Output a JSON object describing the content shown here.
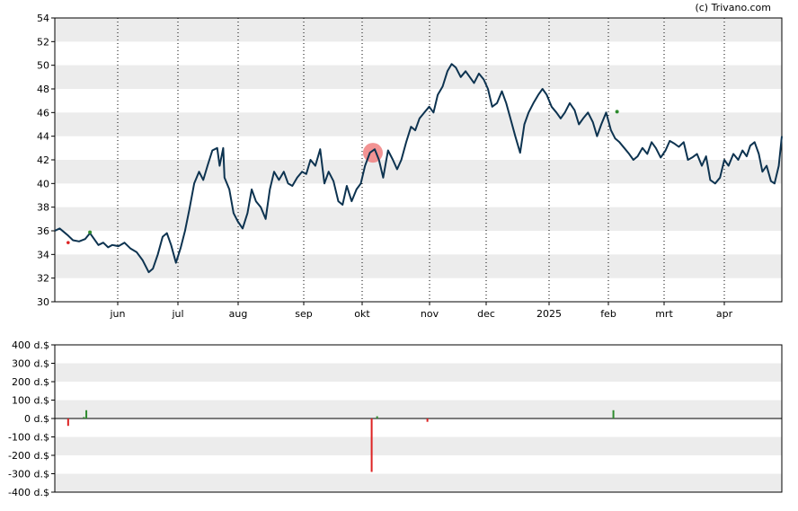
{
  "credit": "(c) Trivano.com",
  "colors": {
    "price_line": "#0d3350",
    "band": "#ececec",
    "buy": "#2e8b2e",
    "sell": "#dd2222",
    "highlight": "#f08080"
  },
  "chart_data": [
    {
      "type": "line",
      "name": "price",
      "ylim": [
        30,
        54
      ],
      "ytick_labels": [
        "30",
        "32",
        "34",
        "36",
        "38",
        "40",
        "42",
        "44",
        "46",
        "48",
        "50",
        "52",
        "54"
      ],
      "xtick_labels": [
        "jun",
        "jul",
        "aug",
        "sep",
        "okt",
        "nov",
        "dec",
        "2025",
        "feb",
        "mrt",
        "apr"
      ],
      "grid": true,
      "x_range": [
        0,
        12
      ],
      "series": [
        {
          "values": [
            [
              0.0,
              36.0
            ],
            [
              0.08,
              36.2
            ],
            [
              0.15,
              35.9
            ],
            [
              0.22,
              35.6
            ],
            [
              0.3,
              35.2
            ],
            [
              0.4,
              35.1
            ],
            [
              0.5,
              35.3
            ],
            [
              0.58,
              35.8
            ],
            [
              0.65,
              35.3
            ],
            [
              0.72,
              34.8
            ],
            [
              0.8,
              35.0
            ],
            [
              0.88,
              34.6
            ],
            [
              0.95,
              34.8
            ],
            [
              1.05,
              34.7
            ],
            [
              1.15,
              35.0
            ],
            [
              1.25,
              34.5
            ],
            [
              1.35,
              34.2
            ],
            [
              1.45,
              33.5
            ],
            [
              1.55,
              32.5
            ],
            [
              1.62,
              32.8
            ],
            [
              1.7,
              34.0
            ],
            [
              1.78,
              35.5
            ],
            [
              1.85,
              35.8
            ],
            [
              1.92,
              34.8
            ],
            [
              2.0,
              33.3
            ],
            [
              2.08,
              34.6
            ],
            [
              2.15,
              36.0
            ],
            [
              2.22,
              37.8
            ],
            [
              2.3,
              40.0
            ],
            [
              2.38,
              41.0
            ],
            [
              2.45,
              40.3
            ],
            [
              2.52,
              41.5
            ],
            [
              2.6,
              42.8
            ],
            [
              2.68,
              43.0
            ],
            [
              2.72,
              41.5
            ],
            [
              2.78,
              43.0
            ],
            [
              2.8,
              40.5
            ],
            [
              2.88,
              39.5
            ],
            [
              2.95,
              37.5
            ],
            [
              3.02,
              36.8
            ],
            [
              3.1,
              36.2
            ],
            [
              3.18,
              37.5
            ],
            [
              3.25,
              39.5
            ],
            [
              3.32,
              38.5
            ],
            [
              3.4,
              38.0
            ],
            [
              3.48,
              37.0
            ],
            [
              3.55,
              39.5
            ],
            [
              3.62,
              41.0
            ],
            [
              3.7,
              40.3
            ],
            [
              3.78,
              41.0
            ],
            [
              3.85,
              40.0
            ],
            [
              3.92,
              39.8
            ],
            [
              4.0,
              40.5
            ],
            [
              4.08,
              41.0
            ],
            [
              4.15,
              40.8
            ],
            [
              4.22,
              42.0
            ],
            [
              4.3,
              41.5
            ],
            [
              4.38,
              42.9
            ],
            [
              4.45,
              40.0
            ],
            [
              4.52,
              41.0
            ],
            [
              4.6,
              40.2
            ],
            [
              4.68,
              38.5
            ],
            [
              4.75,
              38.2
            ],
            [
              4.82,
              39.8
            ],
            [
              4.9,
              38.5
            ],
            [
              4.98,
              39.5
            ],
            [
              5.05,
              40.0
            ],
            [
              5.12,
              41.5
            ],
            [
              5.2,
              42.6
            ],
            [
              5.28,
              42.9
            ],
            [
              5.35,
              42.0
            ],
            [
              5.42,
              40.5
            ],
            [
              5.5,
              42.8
            ],
            [
              5.58,
              42.0
            ],
            [
              5.65,
              41.2
            ],
            [
              5.72,
              42.0
            ],
            [
              5.8,
              43.5
            ],
            [
              5.88,
              44.8
            ],
            [
              5.95,
              44.5
            ],
            [
              6.02,
              45.5
            ],
            [
              6.1,
              46.0
            ],
            [
              6.18,
              46.5
            ],
            [
              6.25,
              46.0
            ],
            [
              6.32,
              47.5
            ],
            [
              6.4,
              48.2
            ],
            [
              6.48,
              49.5
            ],
            [
              6.55,
              50.1
            ],
            [
              6.62,
              49.8
            ],
            [
              6.7,
              49.0
            ],
            [
              6.78,
              49.5
            ],
            [
              6.85,
              49.0
            ],
            [
              6.92,
              48.5
            ],
            [
              7.0,
              49.3
            ],
            [
              7.08,
              48.8
            ],
            [
              7.15,
              48.0
            ],
            [
              7.22,
              46.5
            ],
            [
              7.3,
              46.8
            ],
            [
              7.38,
              47.8
            ],
            [
              7.45,
              46.8
            ],
            [
              7.52,
              45.5
            ],
            [
              7.6,
              44.0
            ],
            [
              7.68,
              42.6
            ],
            [
              7.75,
              45.0
            ],
            [
              7.82,
              46.0
            ],
            [
              7.9,
              46.8
            ],
            [
              7.98,
              47.5
            ],
            [
              8.05,
              48.0
            ],
            [
              8.12,
              47.5
            ],
            [
              8.2,
              46.5
            ],
            [
              8.28,
              46.0
            ],
            [
              8.35,
              45.5
            ],
            [
              8.42,
              46.0
            ],
            [
              8.5,
              46.8
            ],
            [
              8.58,
              46.2
            ],
            [
              8.65,
              45.0
            ],
            [
              8.72,
              45.5
            ],
            [
              8.8,
              46.0
            ],
            [
              8.88,
              45.2
            ],
            [
              8.95,
              44.0
            ],
            [
              9.02,
              45.0
            ],
            [
              9.1,
              46.0
            ],
            [
              9.18,
              44.5
            ],
            [
              9.25,
              43.8
            ],
            [
              9.32,
              43.5
            ],
            [
              9.4,
              43.0
            ],
            [
              9.48,
              42.5
            ],
            [
              9.55,
              42.0
            ],
            [
              9.62,
              42.3
            ],
            [
              9.7,
              43.0
            ],
            [
              9.78,
              42.5
            ],
            [
              9.85,
              43.5
            ],
            [
              9.92,
              43.0
            ],
            [
              10.0,
              42.2
            ],
            [
              10.08,
              42.8
            ],
            [
              10.15,
              43.6
            ],
            [
              10.22,
              43.4
            ],
            [
              10.3,
              43.1
            ],
            [
              10.38,
              43.5
            ],
            [
              10.45,
              42.0
            ],
            [
              10.52,
              42.2
            ],
            [
              10.6,
              42.5
            ],
            [
              10.68,
              41.5
            ],
            [
              10.75,
              42.3
            ],
            [
              10.82,
              40.3
            ],
            [
              10.9,
              40.0
            ],
            [
              10.98,
              40.5
            ],
            [
              11.05,
              42.0
            ],
            [
              11.12,
              41.5
            ],
            [
              11.2,
              42.5
            ],
            [
              11.28,
              42.0
            ],
            [
              11.35,
              42.8
            ],
            [
              11.42,
              42.3
            ],
            [
              11.48,
              43.2
            ],
            [
              11.55,
              43.5
            ],
            [
              11.62,
              42.5
            ],
            [
              11.68,
              41.0
            ],
            [
              11.75,
              41.5
            ],
            [
              11.82,
              40.2
            ],
            [
              11.88,
              40.0
            ],
            [
              11.95,
              41.5
            ],
            [
              12.0,
              44.0
            ]
          ]
        }
      ],
      "markers": {
        "buy": [
          [
            0.58,
            35.8
          ],
          [
            9.28,
            46.0
          ]
        ],
        "sell": [
          [
            0.22,
            35.0
          ]
        ],
        "highlight": [
          [
            5.25,
            42.6
          ]
        ]
      }
    },
    {
      "type": "bar",
      "name": "insider_transactions",
      "ylim": [
        -400,
        400
      ],
      "ytick_labels": [
        "400 d.$",
        "300 d.$",
        "200 d.$",
        "100 d.$",
        "0 d.$",
        "-100 d.$",
        "-200 d.$",
        "-300 d.$",
        "-400 d.$"
      ],
      "grid": true,
      "x_range": [
        0,
        12
      ],
      "bars": [
        {
          "x": 0.22,
          "value": -40,
          "kind": "sell"
        },
        {
          "x": 0.48,
          "value": 8,
          "kind": "buy"
        },
        {
          "x": 0.52,
          "value": 45,
          "kind": "buy"
        },
        {
          "x": 5.23,
          "value": -290,
          "kind": "sell"
        },
        {
          "x": 5.32,
          "value": 12,
          "kind": "buy"
        },
        {
          "x": 6.15,
          "value": -18,
          "kind": "sell"
        },
        {
          "x": 9.22,
          "value": 45,
          "kind": "buy"
        }
      ]
    }
  ]
}
